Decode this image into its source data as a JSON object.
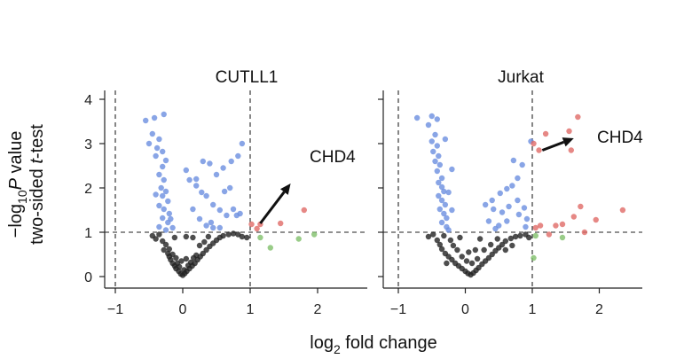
{
  "colors": {
    "up": "#e06a66",
    "down": "#6b8fe0",
    "ns": "#222222",
    "fc_only": "#7fbf6a",
    "axis": "#222222",
    "threshold": "#222222",
    "arrow": "#111111"
  },
  "labels": {
    "xlabel_main": "log",
    "xlabel_sub": "2",
    "xlabel_rest": " fold change",
    "ylabel_line1_pre": "−log",
    "ylabel_line1_sub": "10",
    "ylabel_line1_p": "P",
    "ylabel_line1_post": " value",
    "ylabel_line2_pre": "two-sided ",
    "ylabel_line2_t": "t",
    "ylabel_line2_post": "-test"
  },
  "chart_data": [
    {
      "type": "scatter",
      "title": "CUTLL1",
      "annotation": "CHD4",
      "xlim": [
        -1.1,
        2.6
      ],
      "ylim": [
        -0.1,
        4.2
      ],
      "xticks": [
        -1,
        0,
        1,
        2
      ],
      "xtick_labels": [
        "−1",
        "0",
        "1",
        "2"
      ],
      "yticks": [
        0,
        1,
        2,
        3,
        4
      ],
      "ytick_labels": [
        "0",
        "1",
        "2",
        "3",
        "4"
      ],
      "vlines": [
        -1,
        1
      ],
      "hline": 1,
      "grid": false,
      "arrow": {
        "from": [
          1.15,
          1.2
        ],
        "to": [
          1.6,
          2.1
        ]
      },
      "groups": {
        "down": [
          [
            -0.55,
            3.52
          ],
          [
            -0.42,
            3.58
          ],
          [
            -0.28,
            3.66
          ],
          [
            -0.45,
            3.22
          ],
          [
            -0.35,
            3.1
          ],
          [
            -0.38,
            2.9
          ],
          [
            -0.3,
            2.82
          ],
          [
            -0.4,
            2.72
          ],
          [
            -0.25,
            2.62
          ],
          [
            -0.3,
            2.48
          ],
          [
            -0.35,
            2.3
          ],
          [
            -0.28,
            2.18
          ],
          [
            -0.32,
            2.0
          ],
          [
            -0.25,
            1.92
          ],
          [
            -0.3,
            1.82
          ],
          [
            -0.22,
            1.7
          ],
          [
            -0.35,
            1.6
          ],
          [
            -0.28,
            1.52
          ],
          [
            -0.2,
            1.42
          ],
          [
            -0.3,
            1.32
          ],
          [
            -0.22,
            1.22
          ],
          [
            -0.35,
            1.12
          ],
          [
            -0.25,
            1.05
          ],
          [
            -0.18,
            1.3
          ],
          [
            -0.15,
            1.1
          ],
          [
            -0.4,
            1.85
          ],
          [
            -0.5,
            3.0
          ],
          [
            0.05,
            2.4
          ],
          [
            0.1,
            2.18
          ],
          [
            0.2,
            2.05
          ],
          [
            0.28,
            1.9
          ],
          [
            0.35,
            1.82
          ],
          [
            0.45,
            1.62
          ],
          [
            0.55,
            1.5
          ],
          [
            0.65,
            1.38
          ],
          [
            0.5,
            2.3
          ],
          [
            0.6,
            2.45
          ],
          [
            0.72,
            2.6
          ],
          [
            0.82,
            2.72
          ],
          [
            0.88,
            3.0
          ],
          [
            0.75,
            1.52
          ],
          [
            0.8,
            1.38
          ],
          [
            0.35,
            1.15
          ],
          [
            0.42,
            1.22
          ],
          [
            0.25,
            1.3
          ],
          [
            0.15,
            1.52
          ],
          [
            0.4,
            2.55
          ],
          [
            0.3,
            2.6
          ],
          [
            0.2,
            2.2
          ],
          [
            0.62,
            1.92
          ],
          [
            0.7,
            2.0
          ],
          [
            0.45,
            1.1
          ],
          [
            0.55,
            1.1
          ],
          [
            0.85,
            1.42
          ]
        ],
        "up": [
          [
            1.02,
            1.18
          ],
          [
            1.15,
            1.18
          ],
          [
            1.45,
            1.2
          ],
          [
            1.8,
            1.5
          ],
          [
            1.1,
            1.08
          ]
        ],
        "fc_only": [
          [
            1.3,
            0.65
          ],
          [
            1.72,
            0.85
          ],
          [
            1.95,
            0.95
          ],
          [
            1.15,
            0.88
          ]
        ],
        "ns": [
          [
            -0.35,
            0.95
          ],
          [
            -0.3,
            0.8
          ],
          [
            -0.25,
            0.72
          ],
          [
            -0.28,
            0.6
          ],
          [
            -0.22,
            0.52
          ],
          [
            -0.2,
            0.45
          ],
          [
            -0.18,
            0.38
          ],
          [
            -0.15,
            0.3
          ],
          [
            -0.12,
            0.24
          ],
          [
            -0.1,
            0.18
          ],
          [
            -0.06,
            0.12
          ],
          [
            -0.03,
            0.06
          ],
          [
            0.0,
            0.03
          ],
          [
            0.03,
            0.07
          ],
          [
            0.06,
            0.12
          ],
          [
            0.1,
            0.18
          ],
          [
            0.14,
            0.24
          ],
          [
            0.18,
            0.3
          ],
          [
            0.22,
            0.38
          ],
          [
            0.26,
            0.45
          ],
          [
            0.3,
            0.52
          ],
          [
            0.35,
            0.6
          ],
          [
            0.4,
            0.68
          ],
          [
            0.45,
            0.75
          ],
          [
            0.5,
            0.82
          ],
          [
            0.55,
            0.88
          ],
          [
            0.6,
            0.92
          ],
          [
            0.68,
            0.95
          ],
          [
            0.75,
            0.97
          ],
          [
            0.82,
            0.95
          ],
          [
            0.88,
            0.9
          ],
          [
            -0.45,
            0.92
          ],
          [
            -0.4,
            0.85
          ],
          [
            -0.2,
            0.62
          ],
          [
            -0.15,
            0.5
          ],
          [
            -0.08,
            0.3
          ],
          [
            -0.05,
            0.22
          ],
          [
            0.02,
            0.15
          ],
          [
            0.08,
            0.25
          ],
          [
            0.12,
            0.32
          ],
          [
            0.16,
            0.42
          ],
          [
            0.2,
            0.48
          ],
          [
            -0.1,
            0.42
          ],
          [
            -0.02,
            0.35
          ],
          [
            0.05,
            0.4
          ],
          [
            0.25,
            0.7
          ],
          [
            0.32,
            0.78
          ],
          [
            0.38,
            0.9
          ],
          [
            0.15,
            0.88
          ],
          [
            0.05,
            0.9
          ],
          [
            -0.12,
            0.88
          ],
          [
            0.95,
            0.88
          ]
        ]
      }
    },
    {
      "type": "scatter",
      "title": "Jurkat",
      "annotation": "CHD4",
      "xlim": [
        -1.1,
        2.6
      ],
      "ylim": [
        -0.1,
        4.2
      ],
      "xticks": [
        -1,
        0,
        1,
        2
      ],
      "xtick_labels": [
        "−1",
        "0",
        "1",
        "2"
      ],
      "yticks": [
        0,
        1,
        2,
        3,
        4
      ],
      "ytick_labels": [],
      "vlines": [
        -1,
        1
      ],
      "hline": 1,
      "grid": false,
      "arrow": {
        "from": [
          1.15,
          2.85
        ],
        "to": [
          1.62,
          3.12
        ]
      },
      "groups": {
        "down": [
          [
            -0.72,
            3.58
          ],
          [
            -0.5,
            3.62
          ],
          [
            -0.42,
            3.55
          ],
          [
            -0.55,
            3.42
          ],
          [
            -0.45,
            3.2
          ],
          [
            -0.5,
            3.05
          ],
          [
            -0.42,
            2.95
          ],
          [
            -0.48,
            2.82
          ],
          [
            -0.4,
            2.72
          ],
          [
            -0.45,
            2.6
          ],
          [
            -0.38,
            2.52
          ],
          [
            -0.42,
            2.38
          ],
          [
            -0.35,
            2.22
          ],
          [
            -0.4,
            2.12
          ],
          [
            -0.35,
            2.02
          ],
          [
            -0.32,
            1.92
          ],
          [
            -0.4,
            1.82
          ],
          [
            -0.35,
            1.72
          ],
          [
            -0.3,
            1.62
          ],
          [
            -0.38,
            1.52
          ],
          [
            -0.32,
            1.42
          ],
          [
            -0.28,
            1.32
          ],
          [
            -0.35,
            1.22
          ],
          [
            -0.28,
            1.12
          ],
          [
            -0.25,
            1.05
          ],
          [
            -0.2,
            1.5
          ],
          [
            -0.25,
            1.9
          ],
          [
            -0.3,
            3.1
          ],
          [
            -0.2,
            2.42
          ],
          [
            0.3,
            1.62
          ],
          [
            0.4,
            1.72
          ],
          [
            0.52,
            1.88
          ],
          [
            0.62,
            1.98
          ],
          [
            0.7,
            2.05
          ],
          [
            0.78,
            2.22
          ],
          [
            0.72,
            2.62
          ],
          [
            0.85,
            2.52
          ],
          [
            0.98,
            3.05
          ],
          [
            0.42,
            1.52
          ],
          [
            0.55,
            1.45
          ],
          [
            0.65,
            1.58
          ],
          [
            0.78,
            1.72
          ],
          [
            0.88,
            1.55
          ],
          [
            0.92,
            1.3
          ],
          [
            0.62,
            1.25
          ],
          [
            0.5,
            1.15
          ],
          [
            0.9,
            1.12
          ],
          [
            0.35,
            1.25
          ],
          [
            0.45,
            1.08
          ],
          [
            0.8,
            1.4
          ]
        ],
        "up": [
          [
            1.02,
            3.0
          ],
          [
            1.1,
            2.85
          ],
          [
            1.2,
            3.22
          ],
          [
            1.55,
            3.28
          ],
          [
            1.68,
            3.6
          ],
          [
            1.58,
            2.85
          ],
          [
            1.72,
            1.58
          ],
          [
            1.62,
            1.35
          ],
          [
            1.95,
            1.28
          ],
          [
            1.78,
            1.0
          ],
          [
            2.35,
            1.5
          ],
          [
            1.45,
            1.18
          ],
          [
            1.35,
            1.15
          ],
          [
            1.12,
            1.15
          ],
          [
            1.05,
            1.1
          ],
          [
            1.25,
            0.95
          ]
        ],
        "fc_only": [
          [
            1.05,
            0.92
          ],
          [
            1.02,
            0.42
          ],
          [
            1.45,
            0.88
          ]
        ],
        "ns": [
          [
            -0.48,
            0.95
          ],
          [
            -0.42,
            0.82
          ],
          [
            -0.38,
            0.72
          ],
          [
            -0.35,
            0.62
          ],
          [
            -0.3,
            0.52
          ],
          [
            -0.25,
            0.45
          ],
          [
            -0.2,
            0.38
          ],
          [
            -0.15,
            0.3
          ],
          [
            -0.1,
            0.24
          ],
          [
            -0.05,
            0.18
          ],
          [
            0.0,
            0.12
          ],
          [
            0.04,
            0.07
          ],
          [
            0.08,
            0.04
          ],
          [
            0.12,
            0.08
          ],
          [
            0.16,
            0.14
          ],
          [
            0.2,
            0.2
          ],
          [
            0.25,
            0.28
          ],
          [
            0.3,
            0.35
          ],
          [
            0.35,
            0.42
          ],
          [
            0.4,
            0.5
          ],
          [
            0.45,
            0.58
          ],
          [
            0.5,
            0.65
          ],
          [
            0.55,
            0.72
          ],
          [
            0.6,
            0.8
          ],
          [
            0.68,
            0.86
          ],
          [
            0.75,
            0.9
          ],
          [
            0.82,
            0.92
          ],
          [
            0.9,
            0.95
          ],
          [
            0.95,
            0.88
          ],
          [
            -0.55,
            0.9
          ],
          [
            -0.32,
            0.92
          ],
          [
            -0.22,
            0.82
          ],
          [
            -0.12,
            0.6
          ],
          [
            -0.05,
            0.45
          ],
          [
            0.02,
            0.35
          ],
          [
            0.1,
            0.3
          ],
          [
            0.18,
            0.4
          ],
          [
            0.05,
            0.55
          ],
          [
            -0.18,
            0.7
          ],
          [
            0.28,
            0.6
          ],
          [
            0.38,
            0.72
          ],
          [
            0.48,
            0.85
          ],
          [
            0.22,
            0.85
          ],
          [
            -0.08,
            0.88
          ],
          [
            0.6,
            0.6
          ],
          [
            0.7,
            0.7
          ],
          [
            0.15,
            0.6
          ],
          [
            -0.28,
            0.3
          ]
        ]
      }
    }
  ]
}
